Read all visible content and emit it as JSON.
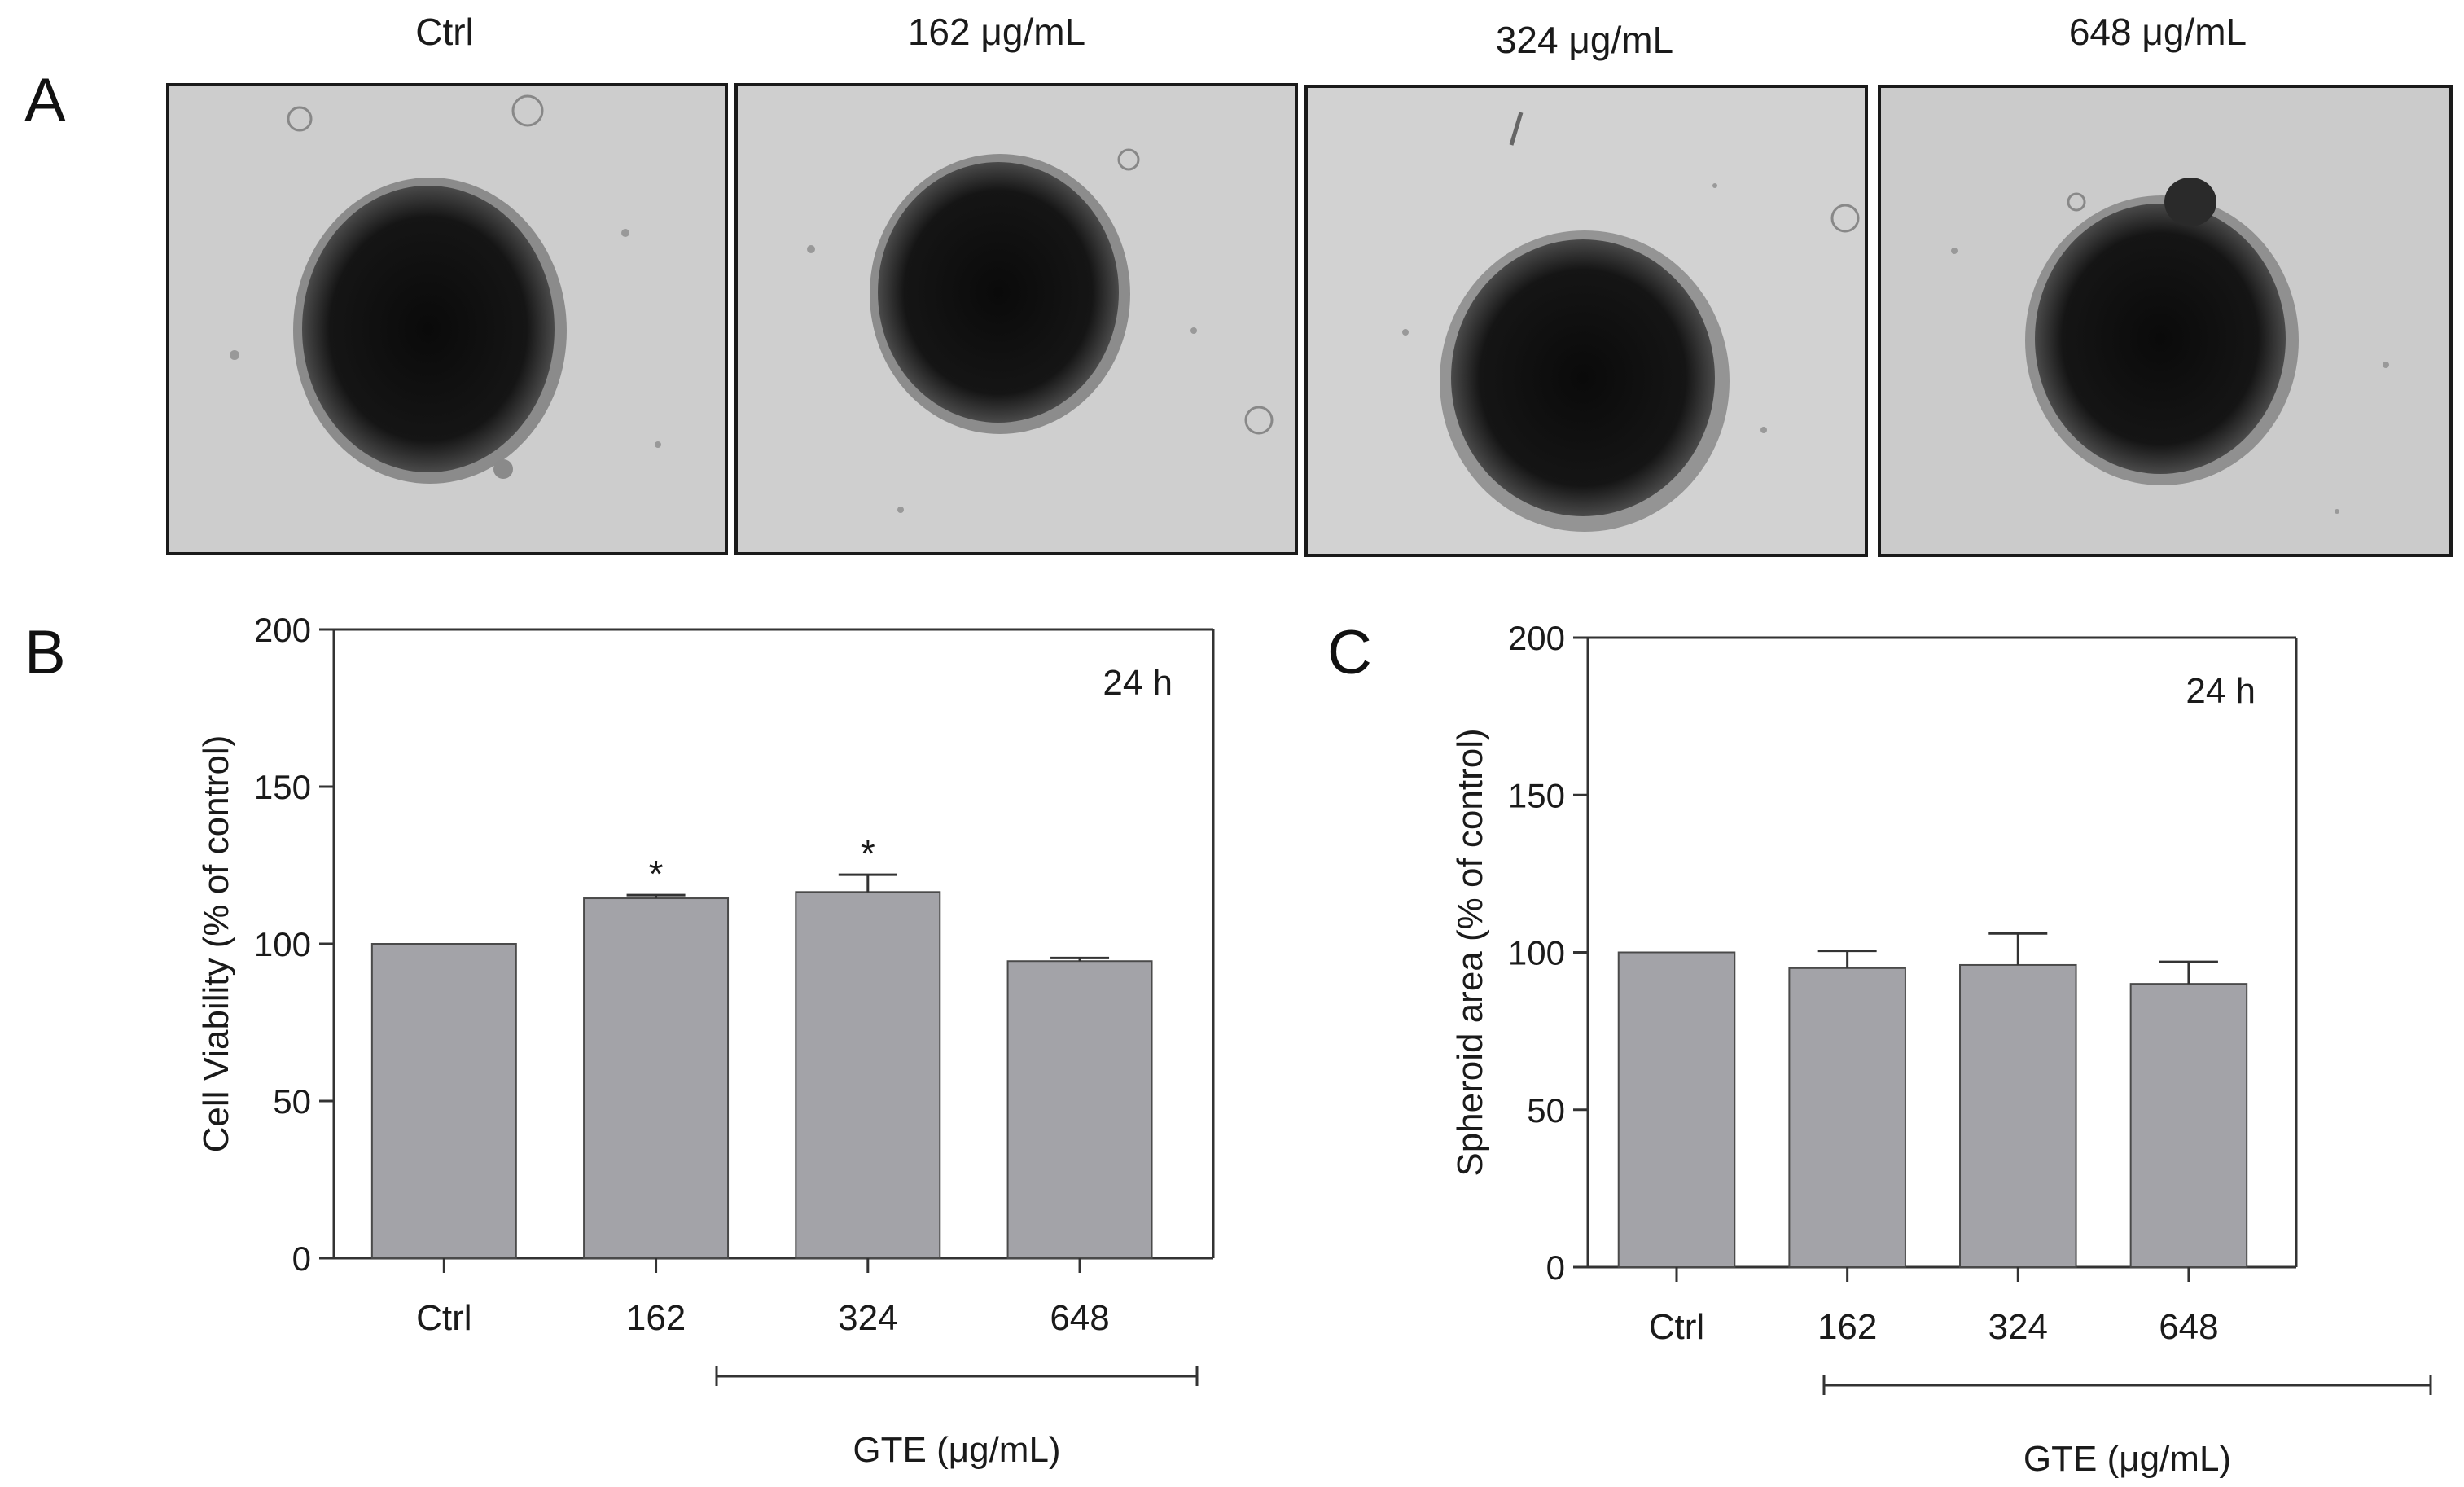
{
  "panels": {
    "a": {
      "letter": "A",
      "images": [
        {
          "label": "Ctrl"
        },
        {
          "label": "162 μg/mL"
        },
        {
          "label": "324 μg/mL"
        },
        {
          "label": "648 μg/mL"
        }
      ]
    },
    "b": {
      "letter": "B"
    },
    "c": {
      "letter": "C"
    }
  },
  "chart_data": [
    {
      "type": "bar",
      "categories": [
        "Ctrl",
        "162",
        "324",
        "648"
      ],
      "values": [
        100,
        114.5,
        116.5,
        94.5
      ],
      "errors": [
        0,
        1,
        5.5,
        1
      ],
      "significance": [
        "",
        "*",
        "*",
        ""
      ],
      "ylabel": "Cell Viability  (% of control)",
      "xlabel": "",
      "group_label": "GTE (μg/mL)",
      "annotation": "24 h",
      "ylim": [
        0,
        200
      ],
      "yticks": [
        0,
        50,
        100,
        150,
        200
      ],
      "bar_color": "#a3a3a8",
      "grid": false
    },
    {
      "type": "bar",
      "categories": [
        "Ctrl",
        "162",
        "324",
        "648"
      ],
      "values": [
        100,
        95,
        96,
        90
      ],
      "errors": [
        0,
        5.5,
        10,
        7
      ],
      "significance": [
        "",
        "",
        "",
        ""
      ],
      "ylabel": "Spheroid area  (% of control)",
      "xlabel": "",
      "group_label": "GTE (μg/mL)",
      "annotation": "24 h",
      "ylim": [
        0,
        200
      ],
      "yticks": [
        0,
        50,
        100,
        150,
        200
      ],
      "bar_color": "#a3a3a8",
      "grid": false
    }
  ]
}
